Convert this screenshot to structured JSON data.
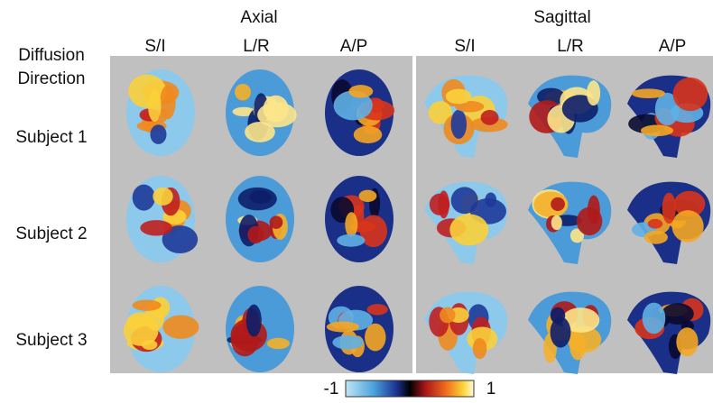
{
  "figure": {
    "groups": [
      {
        "label": "Axial",
        "columns": [
          "S/I",
          "L/R",
          "A/P"
        ]
      },
      {
        "label": "Sagittal",
        "columns": [
          "S/I",
          "L/R",
          "A/P"
        ]
      }
    ],
    "row_header": [
      "Diffusion",
      "Direction"
    ],
    "rows": [
      "Subject 1",
      "Subject 2",
      "Subject 3"
    ],
    "colorbar": {
      "min": -1,
      "max": 1
    }
  }
}
